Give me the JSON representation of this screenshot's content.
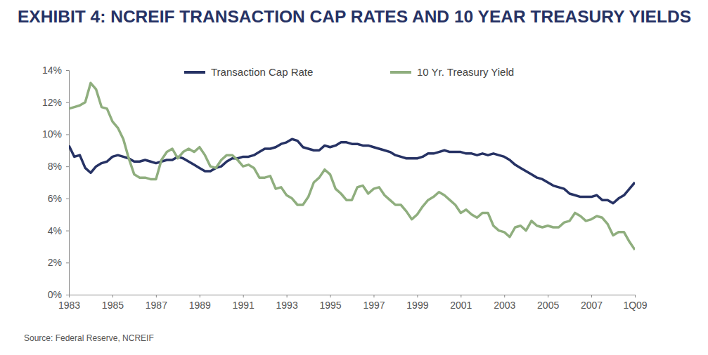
{
  "chart_data": {
    "type": "line",
    "title": "EXHIBIT 4: NCREIF TRANSACTION CAP RATES AND 10 YEAR TREASURY YIELDS",
    "source": "Source: Federal Reserve, NCREIF",
    "x": [
      1983,
      1983.25,
      1983.5,
      1983.75,
      1984,
      1984.25,
      1984.5,
      1984.75,
      1985,
      1985.25,
      1985.5,
      1985.75,
      1986,
      1986.25,
      1986.5,
      1986.75,
      1987,
      1987.25,
      1987.5,
      1987.75,
      1988,
      1988.25,
      1988.5,
      1988.75,
      1989,
      1989.25,
      1989.5,
      1989.75,
      1990,
      1990.25,
      1990.5,
      1990.75,
      1991,
      1991.25,
      1991.5,
      1991.75,
      1992,
      1992.25,
      1992.5,
      1992.75,
      1993,
      1993.25,
      1993.5,
      1993.75,
      1994,
      1994.25,
      1994.5,
      1994.75,
      1995,
      1995.25,
      1995.5,
      1995.75,
      1996,
      1996.25,
      1996.5,
      1996.75,
      1997,
      1997.25,
      1997.5,
      1997.75,
      1998,
      1998.25,
      1998.5,
      1998.75,
      1999,
      1999.25,
      1999.5,
      1999.75,
      2000,
      2000.25,
      2000.5,
      2000.75,
      2001,
      2001.25,
      2001.5,
      2001.75,
      2002,
      2002.25,
      2002.5,
      2002.75,
      2003,
      2003.25,
      2003.5,
      2003.75,
      2004,
      2004.25,
      2004.5,
      2004.75,
      2005,
      2005.25,
      2005.5,
      2005.75,
      2006,
      2006.25,
      2006.5,
      2006.75,
      2007,
      2007.25,
      2007.5,
      2007.75,
      2008,
      2008.25,
      2008.5,
      2008.75,
      2009
    ],
    "series": [
      {
        "name": "Transaction Cap Rate",
        "color": "#263264",
        "values": [
          9.3,
          8.6,
          8.7,
          7.9,
          7.6,
          8.0,
          8.2,
          8.3,
          8.6,
          8.7,
          8.6,
          8.5,
          8.3,
          8.3,
          8.4,
          8.3,
          8.2,
          8.3,
          8.4,
          8.4,
          8.6,
          8.5,
          8.3,
          8.1,
          7.9,
          7.7,
          7.7,
          7.9,
          8.0,
          8.3,
          8.5,
          8.5,
          8.6,
          8.6,
          8.7,
          8.9,
          9.1,
          9.1,
          9.2,
          9.4,
          9.5,
          9.7,
          9.6,
          9.2,
          9.1,
          9.0,
          9.0,
          9.3,
          9.2,
          9.3,
          9.5,
          9.5,
          9.4,
          9.4,
          9.3,
          9.3,
          9.2,
          9.1,
          9.0,
          8.9,
          8.7,
          8.6,
          8.5,
          8.5,
          8.5,
          8.6,
          8.8,
          8.8,
          8.9,
          9.0,
          8.9,
          8.9,
          8.9,
          8.8,
          8.8,
          8.7,
          8.8,
          8.7,
          8.8,
          8.7,
          8.6,
          8.4,
          8.1,
          7.9,
          7.7,
          7.5,
          7.3,
          7.2,
          7.0,
          6.8,
          6.7,
          6.6,
          6.3,
          6.2,
          6.1,
          6.1,
          6.1,
          6.2,
          5.9,
          5.9,
          5.7,
          6.0,
          6.2,
          6.6,
          7.0
        ]
      },
      {
        "name": "10 Yr. Treasury Yield",
        "color": "#8fae7e",
        "values": [
          11.6,
          11.7,
          11.8,
          12.0,
          13.2,
          12.8,
          11.7,
          11.6,
          10.8,
          10.4,
          9.7,
          8.5,
          7.5,
          7.3,
          7.3,
          7.2,
          7.2,
          8.4,
          8.9,
          9.1,
          8.5,
          8.9,
          9.1,
          8.9,
          9.2,
          8.7,
          8.0,
          7.9,
          8.4,
          8.7,
          8.7,
          8.4,
          8.0,
          8.1,
          7.9,
          7.3,
          7.3,
          7.4,
          6.6,
          6.7,
          6.2,
          6.0,
          5.6,
          5.6,
          6.1,
          7.0,
          7.3,
          7.8,
          7.5,
          6.6,
          6.3,
          5.9,
          5.9,
          6.7,
          6.8,
          6.3,
          6.6,
          6.7,
          6.2,
          5.9,
          5.6,
          5.6,
          5.2,
          4.7,
          5.0,
          5.5,
          5.9,
          6.1,
          6.4,
          6.2,
          5.9,
          5.6,
          5.1,
          5.3,
          5.0,
          4.8,
          5.1,
          5.1,
          4.3,
          4.0,
          3.9,
          3.6,
          4.2,
          4.3,
          4.0,
          4.6,
          4.3,
          4.2,
          4.3,
          4.2,
          4.2,
          4.5,
          4.6,
          5.1,
          4.9,
          4.6,
          4.7,
          4.9,
          4.8,
          4.4,
          3.7,
          3.9,
          3.9,
          3.3,
          2.8
        ]
      }
    ],
    "xlim": [
      1983,
      2009
    ],
    "xticks": [
      1983,
      1985,
      1987,
      1989,
      1991,
      1993,
      1995,
      1997,
      1999,
      2001,
      2003,
      2005,
      2007,
      {
        "value": 2009,
        "label": "1Q09"
      }
    ],
    "ylim": [
      0,
      14
    ],
    "yticks": [
      {
        "value": 0,
        "label": "0%"
      },
      {
        "value": 2,
        "label": "2%"
      },
      {
        "value": 4,
        "label": "4%"
      },
      {
        "value": 6,
        "label": "6%"
      },
      {
        "value": 8,
        "label": "8%"
      },
      {
        "value": 10,
        "label": "10%"
      },
      {
        "value": 12,
        "label": "12%"
      },
      {
        "value": 14,
        "label": "14%"
      }
    ],
    "grid": false,
    "legend": "top"
  }
}
